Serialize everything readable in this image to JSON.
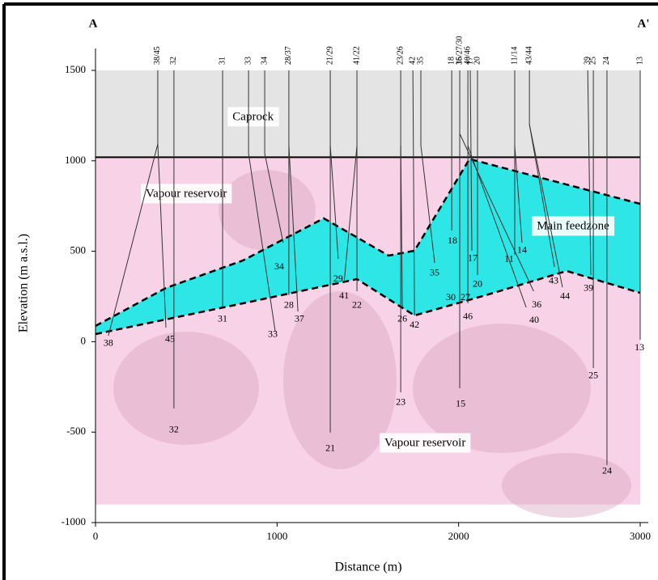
{
  "chart_data": {
    "type": "cross-section",
    "label_left": "A",
    "label_right": "A'",
    "xlabel": "Distance (m)",
    "ylabel": "Elevation (m a.s.l.)",
    "xlim": [
      0,
      3000
    ],
    "ylim": [
      -1000,
      1500
    ],
    "xticks": [
      0,
      1000,
      2000,
      3000
    ],
    "yticks": [
      -1000,
      -500,
      0,
      500,
      1000,
      1500
    ],
    "caprock_base": 1020,
    "reservoir_base": -900,
    "colors": {
      "caprock": "#e4e4e4",
      "reservoir": "#f8d2e6",
      "feedzone": "#2fe6e6",
      "well": "#333333"
    },
    "feedzone_top": {
      "x": [
        0,
        388,
        812,
        1257,
        1614,
        1757,
        2060,
        3000
      ],
      "y": [
        87,
        297,
        449,
        682,
        476,
        503,
        1010,
        762
      ]
    },
    "feedzone_bottom": {
      "x": [
        0,
        812,
        1440,
        1757,
        2149,
        2595,
        3000
      ],
      "y": [
        42,
        212,
        346,
        145,
        257,
        391,
        270
      ]
    },
    "annotations": [
      {
        "text": "Caprock",
        "x": 868,
        "y": 1241
      },
      {
        "text": "Vapour reservoir",
        "x": 500,
        "y": 816
      },
      {
        "text": "Main feedzone",
        "x": 2630,
        "y": 637
      },
      {
        "text": "Vapour reservoir",
        "x": 1815,
        "y": -562
      }
    ],
    "wells": [
      {
        "label": "38/45",
        "x": 343,
        "paths": [
          [
            [
              343,
              1500
            ],
            [
              343,
              1093
            ],
            [
              71,
              33
            ]
          ],
          [
            [
              343,
              1093
            ],
            [
              388,
              78
            ]
          ]
        ]
      },
      {
        "label": "32",
        "x": 432,
        "paths": [
          [
            [
              432,
              1500
            ],
            [
              432,
              -369
            ]
          ]
        ]
      },
      {
        "label": "31",
        "x": 700,
        "paths": [
          [
            [
              700,
              1500
            ],
            [
              700,
              190
            ]
          ]
        ]
      },
      {
        "label": "33",
        "x": 843,
        "paths": [
          [
            [
              843,
              1500
            ],
            [
              843,
              1040
            ],
            [
              990,
              56
            ]
          ]
        ]
      },
      {
        "label": "34",
        "x": 932,
        "paths": [
          [
            [
              932,
              1500
            ],
            [
              932,
              1040
            ],
            [
              1034,
              547
            ]
          ]
        ]
      },
      {
        "label": "28/37",
        "x": 1065,
        "paths": [
          [
            [
              1065,
              1500
            ],
            [
              1065,
              1084
            ],
            [
              1065,
              257
            ]
          ],
          [
            [
              1065,
              1084
            ],
            [
              1115,
              167
            ]
          ]
        ]
      },
      {
        "label": "21/29",
        "x": 1293,
        "paths": [
          [
            [
              1293,
              1500
            ],
            [
              1293,
              -503
            ]
          ],
          [
            [
              1293,
              1084
            ],
            [
              1337,
              458
            ]
          ]
        ]
      },
      {
        "label": "41/22",
        "x": 1440,
        "paths": [
          [
            [
              1440,
              1500
            ],
            [
              1440,
              1084
            ],
            [
              1369,
              324
            ]
          ],
          [
            [
              1440,
              1084
            ],
            [
              1440,
              279
            ]
          ]
        ]
      },
      {
        "label": "23/26",
        "x": 1681,
        "paths": [
          [
            [
              1681,
              1500
            ],
            [
              1681,
              -280
            ]
          ],
          [
            [
              1681,
              1084
            ],
            [
              1690,
              190
            ]
          ]
        ]
      },
      {
        "label": "42",
        "x": 1748,
        "paths": [
          [
            [
              1748,
              1500
            ],
            [
              1757,
              145
            ]
          ]
        ]
      },
      {
        "label": "35",
        "x": 1792,
        "paths": [
          [
            [
              1792,
              1500
            ],
            [
              1792,
              1084
            ],
            [
              1868,
              436
            ]
          ]
        ]
      },
      {
        "label": "36",
        "x": 2006,
        "paths": [
          [
            [
              2006,
              1150
            ],
            [
              2413,
              279
            ]
          ]
        ]
      },
      {
        "label": "18",
        "x": 1962,
        "paths": [
          [
            [
              1962,
              1500
            ],
            [
              1962,
              615
            ]
          ]
        ]
      },
      {
        "label": "15/27/30",
        "x": 2006,
        "paths": [
          [
            [
              2006,
              1500
            ],
            [
              2006,
              -257
            ]
          ]
        ]
      },
      {
        "label": "40/46",
        "x": 2051,
        "paths": [
          [
            [
              2051,
              1500
            ],
            [
              2051,
              1084
            ],
            [
              2372,
              190
            ]
          ],
          [
            [
              2051,
              1084
            ],
            [
              2051,
              212
            ]
          ]
        ]
      },
      {
        "label": "17",
        "x": 2064,
        "paths": [
          [
            [
              2064,
              1500
            ],
            [
              2073,
              503
            ]
          ]
        ]
      },
      {
        "label": "20",
        "x": 2104,
        "paths": [
          [
            [
              2104,
              1500
            ],
            [
              2104,
              369
            ]
          ]
        ]
      },
      {
        "label": "11/14",
        "x": 2309,
        "paths": [
          [
            [
              2309,
              1500
            ],
            [
              2309,
              480
            ]
          ],
          [
            [
              2309,
              1084
            ],
            [
              2349,
              547
            ]
          ]
        ]
      },
      {
        "label": "43/44",
        "x": 2390,
        "paths": [
          [
            [
              2390,
              1500
            ],
            [
              2390,
              1200
            ],
            [
              2528,
              413
            ]
          ],
          [
            [
              2390,
              1200
            ],
            [
              2572,
              301
            ]
          ]
        ]
      },
      {
        "label": "39",
        "x": 2711,
        "paths": [
          [
            [
              2711,
              1500
            ],
            [
              2728,
              369
            ]
          ]
        ]
      },
      {
        "label": "25",
        "x": 2742,
        "paths": [
          [
            [
              2742,
              1500
            ],
            [
              2742,
              -146
            ]
          ]
        ]
      },
      {
        "label": "24",
        "x": 2817,
        "paths": [
          [
            [
              2817,
              1500
            ],
            [
              2817,
              -682
            ]
          ]
        ]
      },
      {
        "label": "13",
        "x": 3000,
        "paths": [
          [
            [
              3000,
              1500
            ],
            [
              3000,
              11
            ]
          ]
        ]
      }
    ],
    "well_labels": [
      {
        "label": "38",
        "x": 71,
        "y": -11
      },
      {
        "label": "45",
        "x": 410,
        "y": 11
      },
      {
        "label": "32",
        "x": 432,
        "y": -490
      },
      {
        "label": "31",
        "x": 700,
        "y": 123
      },
      {
        "label": "33",
        "x": 976,
        "y": 38
      },
      {
        "label": "34",
        "x": 1012,
        "y": 413
      },
      {
        "label": "28",
        "x": 1065,
        "y": 199
      },
      {
        "label": "37",
        "x": 1123,
        "y": 123
      },
      {
        "label": "21",
        "x": 1293,
        "y": -593
      },
      {
        "label": "29",
        "x": 1337,
        "y": 346
      },
      {
        "label": "41",
        "x": 1369,
        "y": 252
      },
      {
        "label": "22",
        "x": 1440,
        "y": 199
      },
      {
        "label": "26",
        "x": 1690,
        "y": 123
      },
      {
        "label": "42",
        "x": 1757,
        "y": 91
      },
      {
        "label": "23",
        "x": 1681,
        "y": -338
      },
      {
        "label": "35",
        "x": 1868,
        "y": 378
      },
      {
        "label": "18",
        "x": 1966,
        "y": 556
      },
      {
        "label": "30",
        "x": 1957,
        "y": 243
      },
      {
        "label": "27",
        "x": 2037,
        "y": 243
      },
      {
        "label": "46",
        "x": 2051,
        "y": 136
      },
      {
        "label": "15",
        "x": 2011,
        "y": -347
      },
      {
        "label": "17",
        "x": 2077,
        "y": 458
      },
      {
        "label": "20",
        "x": 2104,
        "y": 315
      },
      {
        "label": "11",
        "x": 2278,
        "y": 454
      },
      {
        "label": "14",
        "x": 2349,
        "y": 503
      },
      {
        "label": "36",
        "x": 2430,
        "y": 203
      },
      {
        "label": "40",
        "x": 2416,
        "y": 118
      },
      {
        "label": "43",
        "x": 2523,
        "y": 333
      },
      {
        "label": "44",
        "x": 2586,
        "y": 248
      },
      {
        "label": "39",
        "x": 2715,
        "y": 293
      },
      {
        "label": "25",
        "x": 2742,
        "y": -190
      },
      {
        "label": "24",
        "x": 2817,
        "y": -718
      },
      {
        "label": "13",
        "x": 2996,
        "y": -34
      }
    ]
  }
}
